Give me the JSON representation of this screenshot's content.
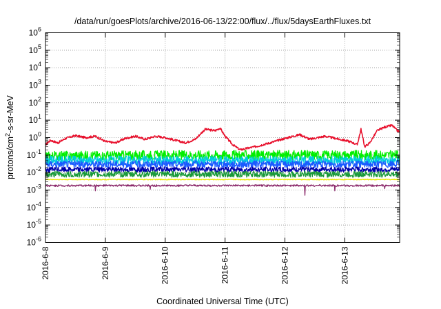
{
  "chart_data": {
    "type": "line",
    "title": "/data/run/goesPlots/archive/2016-06-13/22:00/flux/../flux/5daysEarthFluxes.txt",
    "xlabel": "Coordinated Universal Time (UTC)",
    "ylabel": {
      "prefix": "protons/cm",
      "sup": "2",
      "suffix": "-s-sr-MeV"
    },
    "y_scale": "log",
    "ylim": [
      1e-06,
      1000000.0
    ],
    "y_ticks": [
      {
        "base": "10",
        "exp": "-6"
      },
      {
        "base": "10",
        "exp": "-5"
      },
      {
        "base": "10",
        "exp": "-4"
      },
      {
        "base": "10",
        "exp": "-3"
      },
      {
        "base": "10",
        "exp": "-2"
      },
      {
        "base": "10",
        "exp": "-1"
      },
      {
        "base": "10",
        "exp": "0"
      },
      {
        "base": "10",
        "exp": "1"
      },
      {
        "base": "10",
        "exp": "2"
      },
      {
        "base": "10",
        "exp": "3"
      },
      {
        "base": "10",
        "exp": "4"
      },
      {
        "base": "10",
        "exp": "5"
      },
      {
        "base": "10",
        "exp": "6"
      }
    ],
    "xlim": [
      "2016-06-08",
      "2016-06-13T22:00"
    ],
    "x_ticks": [
      "2016-6-8",
      "2016-6-9",
      "2016-6-10",
      "2016-6-11",
      "2016-6-12",
      "2016-6-13"
    ],
    "grid": true,
    "legend": "none",
    "series": [
      {
        "color": "#e8112d",
        "anchors": [
          [
            "2016-06-08T00:00",
            0.4
          ],
          [
            "2016-06-08T02:00",
            0.7
          ],
          [
            "2016-06-08T05:00",
            0.5
          ],
          [
            "2016-06-08T08:00",
            0.9
          ],
          [
            "2016-06-08T12:00",
            1.3
          ],
          [
            "2016-06-08T16:00",
            1.0
          ],
          [
            "2016-06-08T20:00",
            1.2
          ],
          [
            "2016-06-09T00:00",
            0.6
          ],
          [
            "2016-06-09T04:00",
            0.5
          ],
          [
            "2016-06-09T08:00",
            0.9
          ],
          [
            "2016-06-09T12:00",
            1.2
          ],
          [
            "2016-06-09T16:00",
            0.8
          ],
          [
            "2016-06-09T20:00",
            1.2
          ],
          [
            "2016-06-10T00:00",
            1.0
          ],
          [
            "2016-06-10T04:00",
            0.7
          ],
          [
            "2016-06-10T08:00",
            0.5
          ],
          [
            "2016-06-10T12:00",
            0.8
          ],
          [
            "2016-06-10T16:00",
            3.0
          ],
          [
            "2016-06-10T20:00",
            2.5
          ],
          [
            "2016-06-10T22:00",
            3.5
          ],
          [
            "2016-06-11T00:00",
            1.2
          ],
          [
            "2016-06-11T03:00",
            0.4
          ],
          [
            "2016-06-11T06:00",
            0.2
          ],
          [
            "2016-06-11T12:00",
            0.3
          ],
          [
            "2016-06-11T18:00",
            0.5
          ],
          [
            "2016-06-12T00:00",
            0.9
          ],
          [
            "2016-06-12T06:00",
            1.5
          ],
          [
            "2016-06-12T10:00",
            0.8
          ],
          [
            "2016-06-12T16:00",
            1.2
          ],
          [
            "2016-06-12T22:00",
            0.8
          ],
          [
            "2016-06-13T02:00",
            0.6
          ],
          [
            "2016-06-13T05:00",
            0.4
          ],
          [
            "2016-06-13T06:30",
            3.0
          ],
          [
            "2016-06-13T08:00",
            0.3
          ],
          [
            "2016-06-13T10:00",
            0.5
          ],
          [
            "2016-06-13T13:00",
            2.5
          ],
          [
            "2016-06-13T16:00",
            4.0
          ],
          [
            "2016-06-13T19:00",
            5.0
          ],
          [
            "2016-06-13T21:00",
            2.5
          ],
          [
            "2016-06-13T22:00",
            2.2
          ]
        ],
        "noise": 0.12,
        "dips": []
      },
      {
        "color": "#00ee00",
        "anchors": [
          [
            "2016-06-08T00:00",
            0.09
          ],
          [
            "2016-06-10T12:00",
            0.1
          ],
          [
            "2016-06-13T22:00",
            0.1
          ]
        ],
        "noise": 0.55,
        "dips": []
      },
      {
        "color": "#00ccdd",
        "anchors": [
          [
            "2016-06-08T00:00",
            0.05
          ],
          [
            "2016-06-13T22:00",
            0.05
          ]
        ],
        "noise": 0.5,
        "dips": []
      },
      {
        "color": "#1a5aff",
        "anchors": [
          [
            "2016-06-08T00:00",
            0.03
          ],
          [
            "2016-06-13T22:00",
            0.03
          ]
        ],
        "noise": 0.4,
        "dips": []
      },
      {
        "color": "#0000aa",
        "anchors": [
          [
            "2016-06-08T00:00",
            0.015
          ],
          [
            "2016-06-13T22:00",
            0.015
          ]
        ],
        "noise": 0.3,
        "dips": []
      },
      {
        "color": "#1a9a3a",
        "anchors": [
          [
            "2016-06-08T00:00",
            0.008
          ],
          [
            "2016-06-13T22:00",
            0.008
          ]
        ],
        "noise": 0.35,
        "dips": []
      },
      {
        "color": "#e8e800",
        "anchors": [
          [
            "2016-06-08T00:00",
            0.004
          ],
          [
            "2016-06-13T22:00",
            0.004
          ]
        ],
        "noise": 0.05,
        "dips": []
      },
      {
        "color": "#8b2a6b",
        "anchors": [
          [
            "2016-06-08T00:00",
            0.0018
          ],
          [
            "2016-06-13T22:00",
            0.0018
          ]
        ],
        "noise": 0.1,
        "dips": [
          [
            "2016-06-08T20:00",
            0.0009
          ],
          [
            "2016-06-09T18:00",
            0.0011
          ],
          [
            "2016-06-12T08:00",
            0.0005
          ],
          [
            "2016-06-12T20:00",
            0.0009
          ],
          [
            "2016-06-13T16:00",
            0.0012
          ]
        ]
      }
    ]
  }
}
